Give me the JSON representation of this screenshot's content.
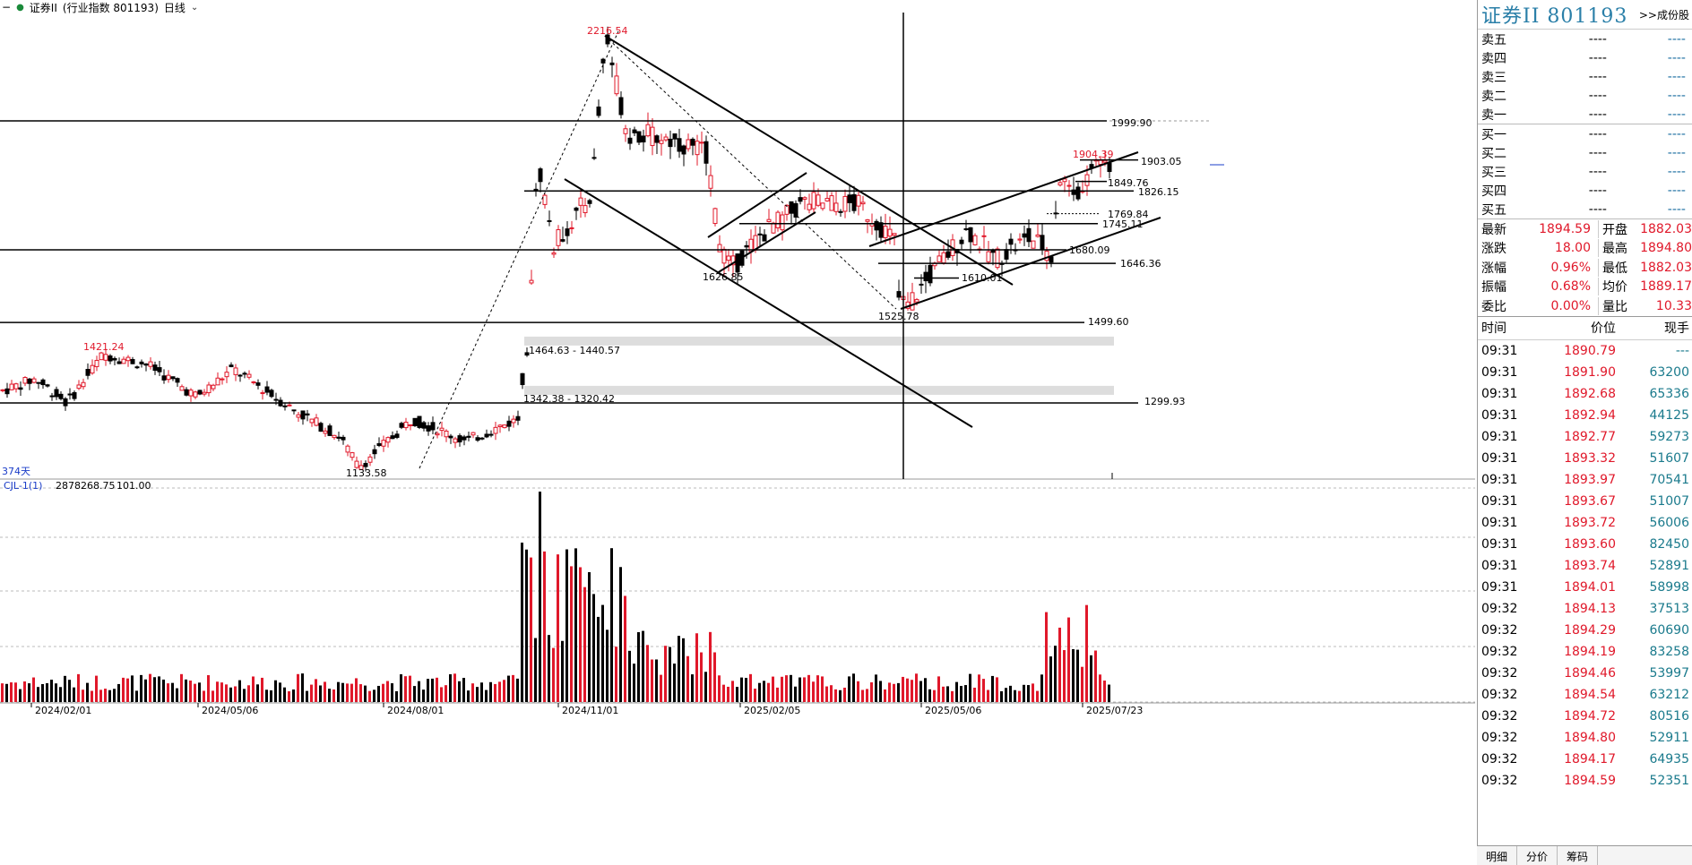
{
  "header": {
    "name": "证券II",
    "desc": "(行业指数  801193)",
    "period": "日线"
  },
  "colors": {
    "up": "#e0182a",
    "down": "#000000",
    "accent": "#2a7fa8"
  },
  "price_axis": {
    "min": 1100,
    "max": 2260
  },
  "chart_labels": {
    "high": "2216.54",
    "peak_right": "1904.39",
    "low_left": "1133.58",
    "p1421": "1421.24",
    "p1626": "1626.85",
    "p1525": "1525.78",
    "p1610": "1610.01",
    "p1680": "1680.09",
    "p1646": "1646.36",
    "p1745": "1745.11",
    "p1769": "1769.84",
    "p1826": "1826.15",
    "p1849": "1849.76",
    "p1903": "1903.05",
    "p1999": "1999.90",
    "p1499": "1499.60",
    "p1299": "1299.93",
    "gap1": "1464.63 - 1440.57",
    "gap2": "1342.38 - 1320.42",
    "days": "374天"
  },
  "volume_panel": {
    "indicator": "CJL-1(1)",
    "value1": "2878268.75",
    "value2": "101.00"
  },
  "dates": [
    "2024/02/01",
    "2024/05/06",
    "2024/08/01",
    "2024/11/01",
    "2025/02/05",
    "2025/05/06",
    "2025/07/23"
  ],
  "quote": {
    "title": "证券II  801193",
    "link": ">>成份股",
    "sell": [
      {
        "label": "卖五",
        "price": "----",
        "vol": "----"
      },
      {
        "label": "卖四",
        "price": "----",
        "vol": "----"
      },
      {
        "label": "卖三",
        "price": "----",
        "vol": "----"
      },
      {
        "label": "卖二",
        "price": "----",
        "vol": "----"
      },
      {
        "label": "卖一",
        "price": "----",
        "vol": "----"
      }
    ],
    "buy": [
      {
        "label": "买一",
        "price": "----",
        "vol": "----"
      },
      {
        "label": "买二",
        "price": "----",
        "vol": "----"
      },
      {
        "label": "买三",
        "price": "----",
        "vol": "----"
      },
      {
        "label": "买四",
        "price": "----",
        "vol": "----"
      },
      {
        "label": "买五",
        "price": "----",
        "vol": "----"
      }
    ],
    "stats": [
      {
        "l1": "最新",
        "v1": "1894.59",
        "l2": "开盘",
        "v2": "1882.03"
      },
      {
        "l1": "涨跌",
        "v1": "18.00",
        "l2": "最高",
        "v2": "1894.80"
      },
      {
        "l1": "涨幅",
        "v1": "0.96%",
        "l2": "最低",
        "v2": "1882.03"
      },
      {
        "l1": "振幅",
        "v1": "0.68%",
        "l2": "均价",
        "v2": "1889.17"
      },
      {
        "l1": "委比",
        "v1": "0.00%",
        "l2": "量比",
        "v2": "10.33"
      }
    ],
    "ticks_header": {
      "time": "时间",
      "price": "价位",
      "vol": "现手"
    },
    "ticks": [
      {
        "t": "09:31",
        "p": "1890.79",
        "v": "---"
      },
      {
        "t": "09:31",
        "p": "1891.90",
        "v": "63200"
      },
      {
        "t": "09:31",
        "p": "1892.68",
        "v": "65336"
      },
      {
        "t": "09:31",
        "p": "1892.94",
        "v": "44125"
      },
      {
        "t": "09:31",
        "p": "1892.77",
        "v": "59273"
      },
      {
        "t": "09:31",
        "p": "1893.32",
        "v": "51607"
      },
      {
        "t": "09:31",
        "p": "1893.97",
        "v": "70541"
      },
      {
        "t": "09:31",
        "p": "1893.67",
        "v": "51007"
      },
      {
        "t": "09:31",
        "p": "1893.72",
        "v": "56006"
      },
      {
        "t": "09:31",
        "p": "1893.60",
        "v": "82450"
      },
      {
        "t": "09:31",
        "p": "1893.74",
        "v": "52891"
      },
      {
        "t": "09:31",
        "p": "1894.01",
        "v": "58998"
      },
      {
        "t": "09:32",
        "p": "1894.13",
        "v": "37513"
      },
      {
        "t": "09:32",
        "p": "1894.29",
        "v": "60690"
      },
      {
        "t": "09:32",
        "p": "1894.19",
        "v": "83258"
      },
      {
        "t": "09:32",
        "p": "1894.46",
        "v": "53997"
      },
      {
        "t": "09:32",
        "p": "1894.54",
        "v": "63212"
      },
      {
        "t": "09:32",
        "p": "1894.72",
        "v": "80516"
      },
      {
        "t": "09:32",
        "p": "1894.80",
        "v": "52911"
      },
      {
        "t": "09:32",
        "p": "1894.17",
        "v": "64935"
      },
      {
        "t": "09:32",
        "p": "1894.59",
        "v": "52351"
      }
    ],
    "tabs": [
      "明细",
      "分价",
      "筹码"
    ]
  }
}
